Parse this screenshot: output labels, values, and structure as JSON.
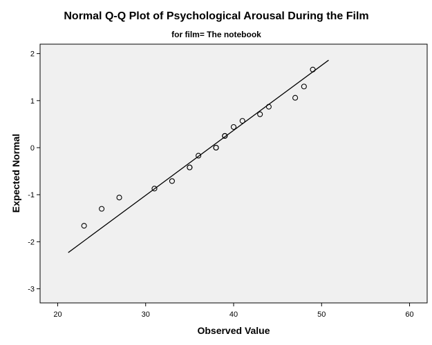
{
  "chart_data": {
    "type": "scatter",
    "title": "Normal Q-Q Plot of Psychological Arousal During the Film",
    "subtitle": "for film= The notebook",
    "xlabel": "Observed Value",
    "ylabel": "Expected Normal",
    "xlim": [
      18,
      62
    ],
    "ylim": [
      -3.3,
      2.2
    ],
    "x_ticks": [
      20,
      30,
      40,
      50,
      60
    ],
    "y_ticks": [
      2,
      1,
      0,
      -1,
      -2,
      -3
    ],
    "grid": false,
    "points": [
      {
        "x": 23,
        "y": -1.66
      },
      {
        "x": 25,
        "y": -1.3
      },
      {
        "x": 27,
        "y": -1.06
      },
      {
        "x": 31,
        "y": -0.87
      },
      {
        "x": 33,
        "y": -0.71
      },
      {
        "x": 35,
        "y": -0.42
      },
      {
        "x": 35,
        "y": -0.42
      },
      {
        "x": 36,
        "y": -0.17
      },
      {
        "x": 38,
        "y": 0.0
      },
      {
        "x": 38,
        "y": 0.0
      },
      {
        "x": 39,
        "y": 0.25
      },
      {
        "x": 39,
        "y": 0.25
      },
      {
        "x": 40,
        "y": 0.44
      },
      {
        "x": 41,
        "y": 0.57
      },
      {
        "x": 43,
        "y": 0.71
      },
      {
        "x": 44,
        "y": 0.87
      },
      {
        "x": 47,
        "y": 1.06
      },
      {
        "x": 48,
        "y": 1.3
      },
      {
        "x": 49,
        "y": 1.66
      }
    ],
    "reference_line": {
      "x": [
        21.2,
        50.8
      ],
      "y": [
        -2.23,
        1.86
      ]
    },
    "colors": {
      "plot_background": "#f0f0f0",
      "marker_stroke": "#000000",
      "line": "#000000"
    }
  }
}
